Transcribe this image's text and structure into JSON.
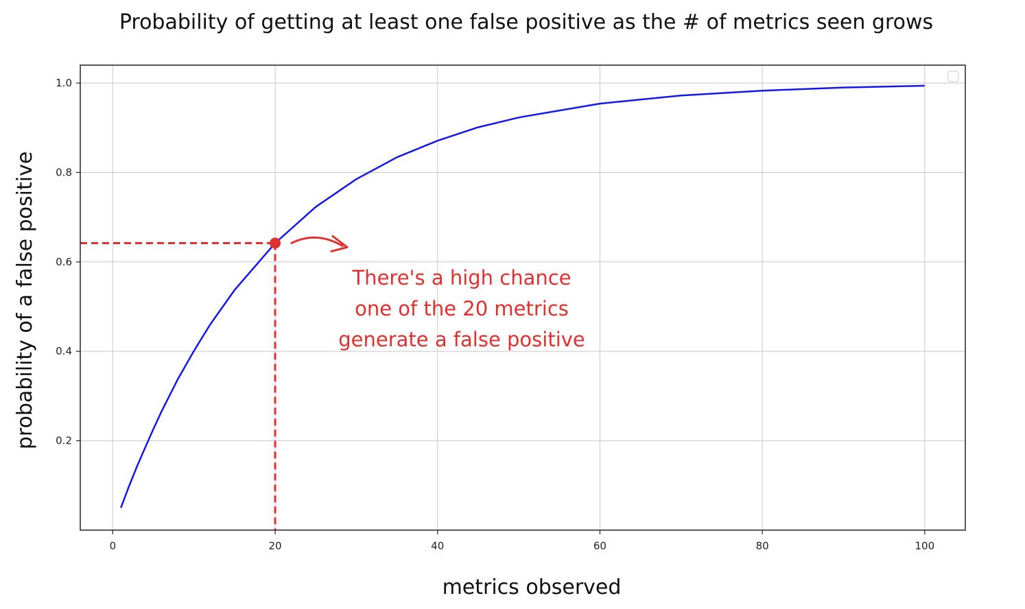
{
  "chart_data": {
    "type": "line",
    "title": "Probability of getting at least one false positive as the # of metrics seen grows",
    "xlabel": "metrics observed",
    "ylabel": "probability of a false positive",
    "xlim": [
      -4,
      105
    ],
    "ylim": [
      0,
      1.04
    ],
    "xticks": [
      0,
      20,
      40,
      60,
      80,
      100
    ],
    "yticks": [
      0.2,
      0.4,
      0.6,
      0.8,
      1.0
    ],
    "xtick_labels": [
      "0",
      "20",
      "40",
      "60",
      "80",
      "100"
    ],
    "ytick_labels": [
      "0.2",
      "0.4",
      "0.6",
      "0.8",
      "1.0"
    ],
    "grid": true,
    "legend": "top-right",
    "series": [
      {
        "color": "#1515f0",
        "x": [
          1,
          2,
          3,
          4,
          5,
          6,
          8,
          10,
          12,
          15,
          20,
          25,
          30,
          35,
          40,
          45,
          50,
          60,
          70,
          80,
          90,
          100
        ],
        "y": [
          0.05,
          0.098,
          0.143,
          0.185,
          0.226,
          0.265,
          0.337,
          0.401,
          0.46,
          0.537,
          0.642,
          0.723,
          0.785,
          0.834,
          0.871,
          0.901,
          0.923,
          0.954,
          0.972,
          0.983,
          0.99,
          0.994
        ]
      }
    ],
    "highlight": {
      "x": 20,
      "y": 0.642,
      "color": "#e03030",
      "annotation": [
        "There's a high chance",
        "one of the 20 metrics",
        "generate a false positive"
      ]
    }
  }
}
